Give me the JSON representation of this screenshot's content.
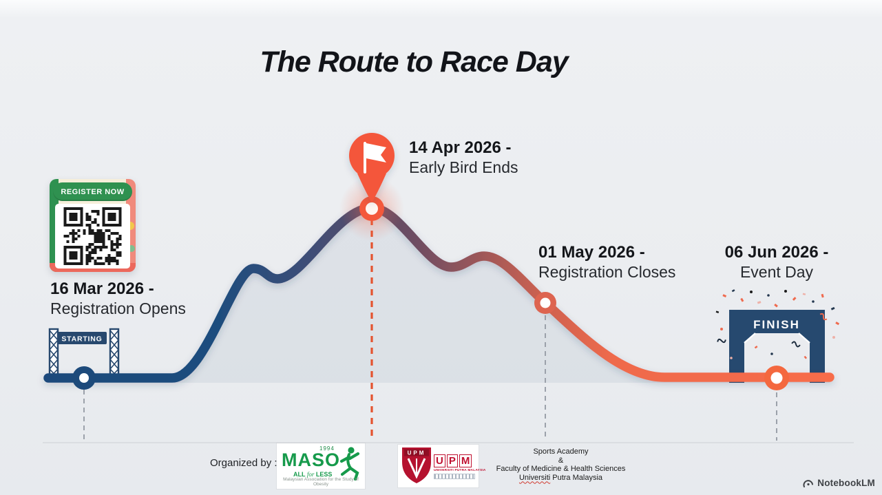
{
  "title": "The Route to Race Day",
  "milestones": [
    {
      "date": "16 Mar 2026 -",
      "label": "Registration Opens"
    },
    {
      "date": "14 Apr 2026 -",
      "label": "Early Bird Ends"
    },
    {
      "date": "01 May 2026 -",
      "label": "Registration Closes"
    },
    {
      "date": "06 Jun 2026 -",
      "label": "Event Day"
    }
  ],
  "qr_badge": "REGISTER NOW",
  "start_gate_label": "STARTING",
  "finish_gate_label": "FINISH",
  "footer": {
    "organized_by": "Organized by :",
    "maso": {
      "year": "1994",
      "name": "MASO",
      "tagline_pre": "ALL ",
      "tagline_mid": "for",
      "tagline_post": " LESS",
      "subtitle": "Malaysian Association for the Study of Obesity"
    },
    "upm": {
      "emblem": "UPM",
      "letters": [
        "U",
        "P",
        "M"
      ],
      "name": "UNIVERSITI PUTRA MALAYSIA"
    },
    "affiliation": {
      "line1": "Sports Academy",
      "line2": "&",
      "line3": "Faculty of Medicine & Health Sciences",
      "line4_underlined": "Universiti",
      "line4_rest": " Putra Malaysia"
    }
  },
  "watermark": "NotebookLM",
  "colors": {
    "route_start": "#1d4a7b",
    "route_peak": "#5a4c68",
    "route_end": "#f76c4a",
    "accent_orange": "#f4583b",
    "node_salmon": "#dd6450",
    "gate_navy": "#26496f",
    "dash_gray": "#9ba1aa",
    "dash_orange": "#e4532f"
  }
}
